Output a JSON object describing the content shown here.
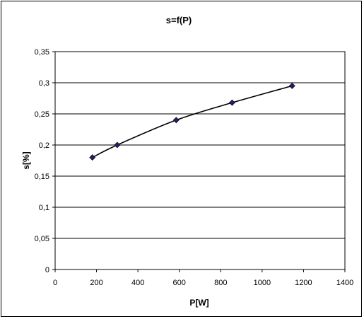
{
  "chart_data": {
    "type": "scatter",
    "title": "s=f(P)",
    "xlabel": "P[W]",
    "ylabel": "s[%]",
    "xlim": [
      0,
      1400
    ],
    "ylim": [
      0,
      0.35
    ],
    "x_ticks": [
      0,
      200,
      400,
      600,
      800,
      1000,
      1200,
      1400
    ],
    "y_ticks": [
      0,
      0.05,
      0.1,
      0.15,
      0.2,
      0.25,
      0.3,
      0.35
    ],
    "x_tick_labels": [
      "0",
      "200",
      "400",
      "600",
      "800",
      "1000",
      "1200",
      "1400"
    ],
    "y_tick_labels": [
      "0",
      "0,05",
      "0,1",
      "0,15",
      "0,2",
      "0,25",
      "0,3",
      "0,35"
    ],
    "grid": "horizontal",
    "legend": "none",
    "trendline": "smooth",
    "series": [
      {
        "x": [
          180,
          300,
          585,
          855,
          1145
        ],
        "y": [
          0.18,
          0.2,
          0.24,
          0.268,
          0.295
        ],
        "color": "#1f1f6b",
        "marker": "diamond"
      }
    ]
  }
}
